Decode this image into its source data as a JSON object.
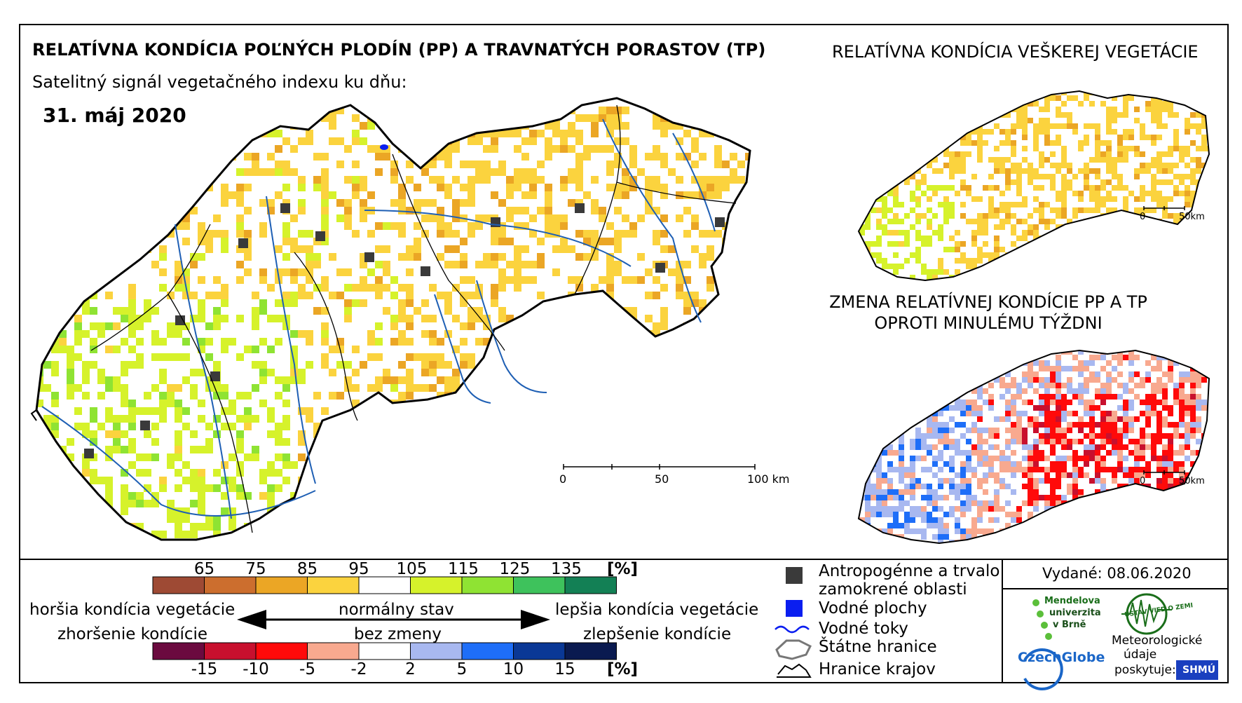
{
  "titles": {
    "main": "RELATÍVNA KONDÍCIA POĽNÝCH PLODÍN (PP) A TRAVNATÝCH PORASTOV (TP)",
    "subtitle": "Satelitný signál vegetačného indexu ku dňu:",
    "date": "31. máj 2020",
    "right_top": "RELATÍVNA KONDÍCIA VEŠKEREJ VEGETÁCIE",
    "change_line1": "ZMENA RELATÍVNEJ KONDÍCIE PP A TP",
    "change_line2": "OPROTI MINULÉMU TÝŽDNI"
  },
  "scales": {
    "main": [
      "0",
      "50",
      "100 km"
    ],
    "small_top": [
      "0",
      "50km"
    ],
    "small_bottom": [
      "0",
      "50km"
    ]
  },
  "legend": {
    "condition": {
      "unit": "[%]",
      "ticks": [
        "65",
        "75",
        "85",
        "95",
        "105",
        "115",
        "125",
        "135"
      ],
      "colors": [
        "#9e4a34",
        "#cc6e2e",
        "#eba625",
        "#fbd33e",
        "#ffffff",
        "#d6f22b",
        "#8fe333",
        "#3ec25c",
        "#138055"
      ]
    },
    "change": {
      "unit": "[%]",
      "ticks": [
        "-15",
        "-10",
        "-5",
        "-2",
        "2",
        "5",
        "10",
        "15"
      ],
      "colors": [
        "#6b0a3f",
        "#c8102e",
        "#ff0a0a",
        "#f8a98f",
        "#ffffff",
        "#a8b8f0",
        "#1e6ef8",
        "#0a3896",
        "#0a1a50"
      ]
    },
    "left_top": "horšia kondícia vegetácie",
    "left_bottom": "zhoršenie kondície",
    "mid_top": "normálny stav",
    "mid_bottom": "bez zmeny",
    "right_top": "lepšia kondícia vegetácie",
    "right_bottom": "zlepšenie kondície",
    "symbols": {
      "anthro_1": "Antropogénne a trvalo",
      "anthro_2": "zamokrené oblasti",
      "water": "Vodné plochy",
      "rivers": "Vodné toky",
      "borders": "Štátne hranice",
      "regions": "Hranice krajov"
    }
  },
  "issued": "Vydané: 08.06.2020",
  "logos": {
    "mendel_1": "Mendelova",
    "mendel_2": "univerzita",
    "mendel_3": "v Brně",
    "czechglobe": "CzechGlobe",
    "ustav": "ÚSTAV VIED O ZEMI",
    "meteo_1": "Meteorologické",
    "meteo_2": "údaje",
    "meteo_3": "poskytuje:",
    "shmu": "SHMÚ"
  },
  "colors": {
    "anthro": "#3a3a3a",
    "water": "#0a1ef0",
    "river": "#1e5fb4",
    "border": "#000000"
  }
}
